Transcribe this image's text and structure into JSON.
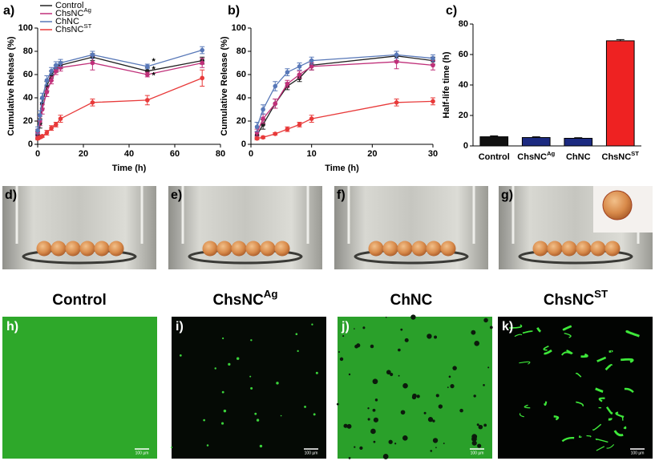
{
  "chart_data": [
    {
      "type": "line",
      "panel": "a)",
      "xlabel": "Time (h)",
      "ylabel": "Cumulative Release (%)",
      "xlim": [
        0,
        80
      ],
      "xticks": [
        0,
        20,
        40,
        60,
        80
      ],
      "ylim": [
        0,
        100
      ],
      "yticks": [
        0,
        20,
        40,
        60,
        80,
        100
      ],
      "legend": "top-left",
      "x": [
        0,
        1,
        2,
        4,
        6,
        8,
        10,
        24,
        48,
        72
      ],
      "series": [
        {
          "name": "Control",
          "name_sup": null,
          "color": "#222222",
          "values": [
            8,
            18,
            35,
            50,
            60,
            65,
            68,
            75,
            63,
            72
          ],
          "errors": [
            3,
            4,
            4,
            4,
            3,
            3,
            3,
            3,
            3,
            3
          ]
        },
        {
          "name": "ChsNC",
          "name_sup": "Ag",
          "color": "#c0307a",
          "values": [
            10,
            20,
            30,
            45,
            55,
            63,
            66,
            70,
            60,
            70
          ],
          "errors": [
            3,
            4,
            4,
            4,
            3,
            3,
            3,
            6,
            2,
            4
          ]
        },
        {
          "name": "ChNC",
          "name_sup": null,
          "color": "#5878b8",
          "values": [
            12,
            25,
            40,
            55,
            63,
            68,
            70,
            77,
            67,
            81
          ],
          "errors": [
            3,
            4,
            4,
            4,
            3,
            3,
            3,
            3,
            2,
            3
          ]
        },
        {
          "name": "ChsNC",
          "name_sup": "ST",
          "color": "#e83a3a",
          "values": [
            5,
            6,
            7,
            10,
            14,
            17,
            22,
            36,
            38,
            57
          ],
          "errors": [
            1,
            1,
            1,
            2,
            2,
            2,
            3,
            3,
            4,
            7
          ]
        }
      ],
      "annotations": [
        {
          "text": "*",
          "x": 50,
          "y": 71
        },
        {
          "text": "*",
          "x": 50,
          "y": 64
        },
        {
          "text": "*",
          "x": 50,
          "y": 59
        }
      ]
    },
    {
      "type": "line",
      "panel": "b)",
      "xlabel": "Time (h)",
      "ylabel": "Cumulative Release (%)",
      "xlim": [
        0,
        30
      ],
      "xticks": [
        0,
        10,
        20,
        30
      ],
      "ylim": [
        0,
        100
      ],
      "yticks": [
        0,
        20,
        40,
        60,
        80,
        100
      ],
      "x": [
        1,
        2,
        4,
        6,
        8,
        10,
        24,
        30
      ],
      "series": [
        {
          "color": "#222222",
          "values": [
            8,
            17,
            35,
            50,
            57,
            68,
            76,
            72
          ],
          "errors": [
            3,
            4,
            4,
            3,
            3,
            4,
            4,
            3
          ]
        },
        {
          "color": "#c0307a",
          "values": [
            10,
            22,
            35,
            52,
            60,
            67,
            71,
            68
          ],
          "errors": [
            3,
            4,
            4,
            3,
            3,
            3,
            6,
            4
          ]
        },
        {
          "color": "#5878b8",
          "values": [
            15,
            30,
            50,
            62,
            67,
            72,
            77,
            74
          ],
          "errors": [
            4,
            4,
            4,
            3,
            3,
            3,
            3,
            3
          ]
        },
        {
          "color": "#e83a3a",
          "values": [
            5,
            6,
            9,
            13,
            17,
            22,
            36,
            37
          ],
          "errors": [
            1,
            1,
            1,
            2,
            2,
            3,
            3,
            3
          ]
        }
      ]
    },
    {
      "type": "bar",
      "panel": "c)",
      "ylabel": "Half-life time (h)",
      "ylim": [
        0,
        80
      ],
      "yticks": [
        0,
        20,
        40,
        60,
        80
      ],
      "categories": [
        "Control",
        "ChsNC",
        "ChNC",
        "ChsNC"
      ],
      "category_sups": [
        null,
        "Ag",
        null,
        "ST"
      ],
      "values": [
        6,
        5.5,
        5,
        69
      ],
      "errors": [
        0.6,
        0.5,
        0.4,
        0.8
      ],
      "colors": [
        "#111111",
        "#1c2a80",
        "#1c2a80",
        "#ee2222"
      ]
    }
  ],
  "photos": [
    {
      "label": "d)",
      "caption": "Control",
      "caption_sup": null
    },
    {
      "label": "e)",
      "caption": "ChsNC",
      "caption_sup": "Ag"
    },
    {
      "label": "f)",
      "caption": "ChNC",
      "caption_sup": null
    },
    {
      "label": "g)",
      "caption": "ChsNC",
      "caption_sup": "ST"
    }
  ],
  "micrographs": [
    {
      "label": "h)",
      "scale_bar": "100 µm"
    },
    {
      "label": "i)",
      "scale_bar": "100 µm"
    },
    {
      "label": "j)",
      "scale_bar": "100 µm"
    },
    {
      "label": "k)",
      "scale_bar": "100 µm"
    }
  ]
}
